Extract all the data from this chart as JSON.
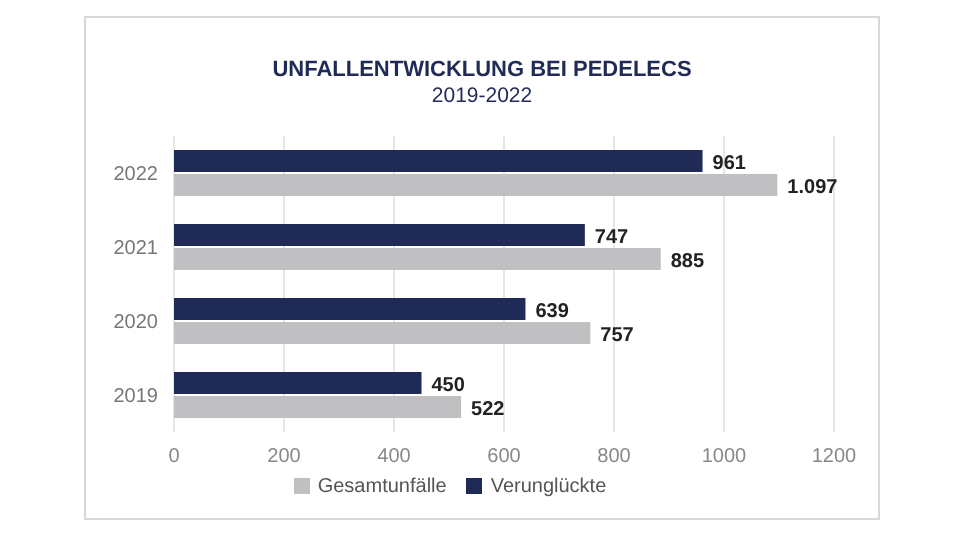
{
  "chart_data": {
    "type": "bar",
    "orientation": "horizontal",
    "title": "UNFALLENTWICKLUNG BEI PEDELECS",
    "subtitle": "2019-2022",
    "categories": [
      "2022",
      "2021",
      "2020",
      "2019"
    ],
    "series": [
      {
        "name": "Verunglückte",
        "color": "#1f2a56",
        "values": [
          961,
          747,
          639,
          450
        ],
        "value_labels": [
          "961",
          "747",
          "639",
          "450"
        ]
      },
      {
        "name": "Gesamtunfälle",
        "color": "#c0c0c3",
        "values": [
          1097,
          885,
          757,
          522
        ],
        "value_labels": [
          "1.097",
          "885",
          "757",
          "522"
        ]
      }
    ],
    "xlim": [
      0,
      1200
    ],
    "xticks": [
      0,
      200,
      400,
      600,
      800,
      1000,
      1200
    ],
    "grid": "x",
    "legend": "bottom"
  }
}
